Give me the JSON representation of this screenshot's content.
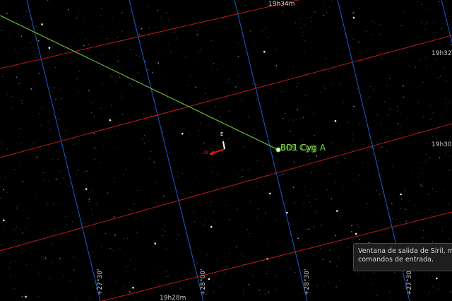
{
  "colors": {
    "background": "#000000",
    "ra_grid": "#c0181c",
    "dec_grid": "#1e5bd0",
    "catalog": "#7cd63a",
    "compass_north": "#e01818",
    "compass_east": "#ffffff"
  },
  "grid": {
    "ra_labels": [
      "19h34m",
      "19h32m",
      "19h30m",
      "19h28m"
    ],
    "dec_labels": [
      "+27°30'",
      "+28°00'",
      "+28°30'",
      "+27°30'"
    ]
  },
  "object": {
    "label": "BD1 Cyg A",
    "overlap_label": "001 Cyg"
  },
  "compass": {
    "north_label": "N",
    "east_label": "E"
  },
  "tooltip": {
    "line1": "Ventana de salida de Siril, muestra",
    "line2": "comandos de entrada."
  }
}
